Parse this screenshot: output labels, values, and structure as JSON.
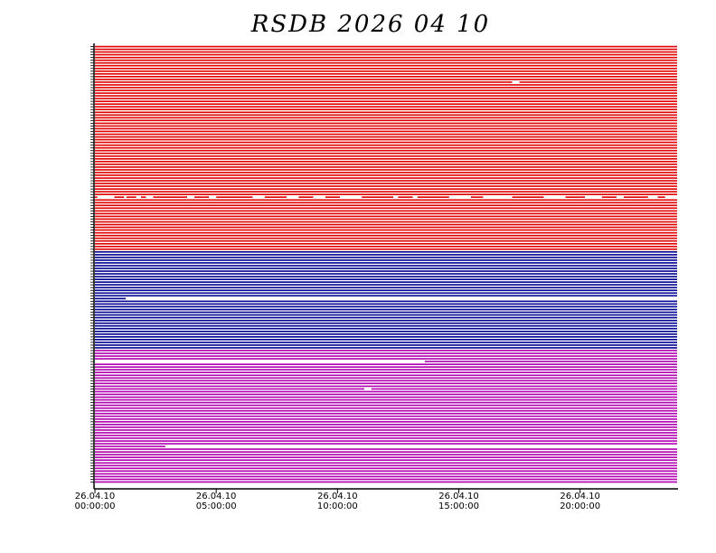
{
  "chart_data": {
    "type": "timeline",
    "title": "RSDB  2026  04  10",
    "xlim": [
      0,
      24
    ],
    "xticks": [
      {
        "value": 0,
        "label": "26.04.10\n00:00:00"
      },
      {
        "value": 5,
        "label": "26.04.10\n05:00:00"
      },
      {
        "value": 10,
        "label": "26.04.10\n10:00:00"
      },
      {
        "value": 15,
        "label": "26.04.10\n15:00:00"
      },
      {
        "value": 20,
        "label": "26.04.10\n20:00:00"
      }
    ],
    "groups": [
      {
        "color": "#e00000",
        "count": 75
      },
      {
        "color": "#000090",
        "count": 36
      },
      {
        "color": "#b000b0",
        "count": 49
      }
    ],
    "gaps": [
      {
        "trace": 13,
        "start": 17.2,
        "end": 17.5
      },
      {
        "trace": 55,
        "start": 0.1,
        "end": 0.8
      },
      {
        "trace": 55,
        "start": 1.2,
        "end": 1.3
      },
      {
        "trace": 55,
        "start": 1.7,
        "end": 1.9
      },
      {
        "trace": 55,
        "start": 2.1,
        "end": 2.4
      },
      {
        "trace": 55,
        "start": 3.8,
        "end": 4.1
      },
      {
        "trace": 55,
        "start": 4.7,
        "end": 5.0
      },
      {
        "trace": 55,
        "start": 6.5,
        "end": 7.0
      },
      {
        "trace": 55,
        "start": 7.9,
        "end": 8.4
      },
      {
        "trace": 55,
        "start": 9.0,
        "end": 9.5
      },
      {
        "trace": 55,
        "start": 10.1,
        "end": 11.0
      },
      {
        "trace": 55,
        "start": 12.3,
        "end": 12.5
      },
      {
        "trace": 55,
        "start": 13.1,
        "end": 13.3
      },
      {
        "trace": 55,
        "start": 14.6,
        "end": 15.5
      },
      {
        "trace": 55,
        "start": 16.0,
        "end": 17.2
      },
      {
        "trace": 55,
        "start": 18.5,
        "end": 19.4
      },
      {
        "trace": 55,
        "start": 20.2,
        "end": 20.9
      },
      {
        "trace": 55,
        "start": 21.5,
        "end": 21.8
      },
      {
        "trace": 55,
        "start": 22.8,
        "end": 23.2
      },
      {
        "trace": 55,
        "start": 23.5,
        "end": 24
      },
      {
        "trace": 92,
        "start": 1.27,
        "end": 24
      },
      {
        "trace": 115,
        "start": 0,
        "end": 13.6
      },
      {
        "trace": 125,
        "start": 11.1,
        "end": 11.4
      },
      {
        "trace": 146,
        "start": 2.9,
        "end": 24
      }
    ]
  }
}
